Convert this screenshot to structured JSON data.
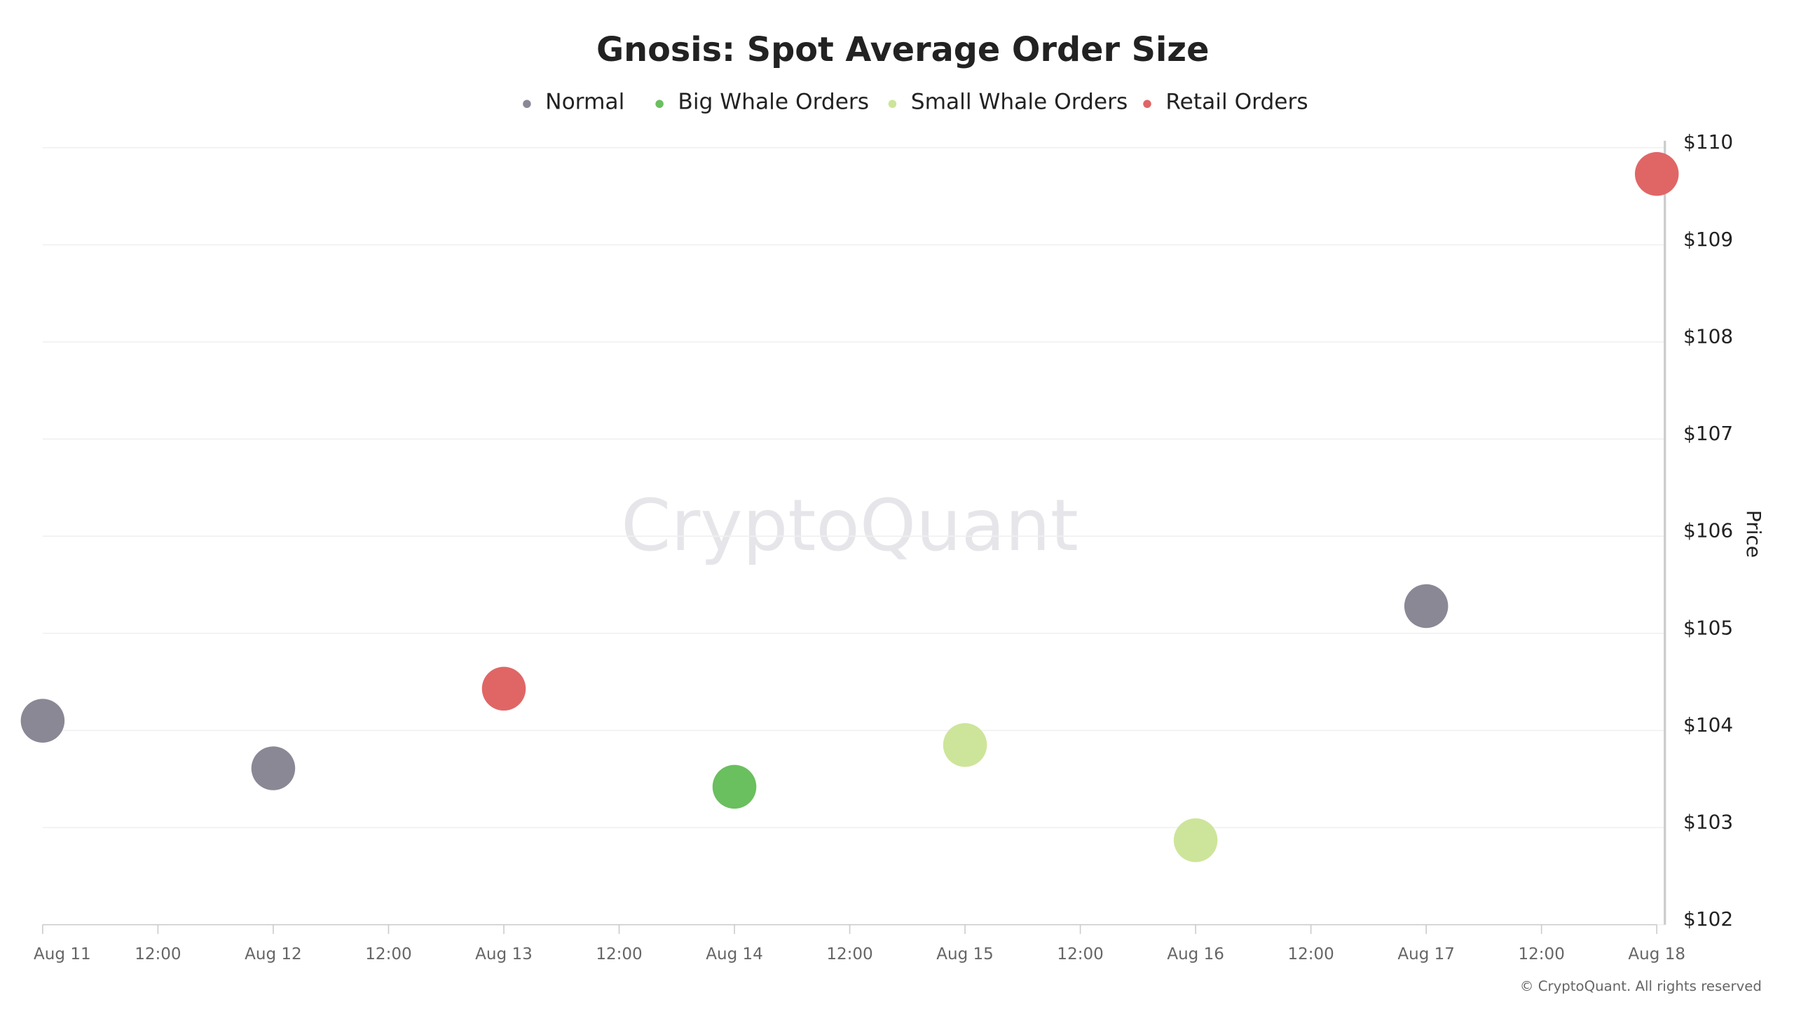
{
  "chart_data": {
    "type": "scatter",
    "title": "Gnosis: Spot Average Order Size",
    "x": [
      "Aug 11",
      "Aug 12",
      "Aug 13",
      "Aug 14",
      "Aug 15",
      "Aug 16",
      "Aug 17",
      "Aug 18"
    ],
    "xtick_labels": [
      "Aug 11",
      "12:00",
      "Aug 12",
      "12:00",
      "Aug 13",
      "12:00",
      "Aug 14",
      "12:00",
      "Aug 15",
      "12:00",
      "Aug 16",
      "12:00",
      "Aug 17",
      "12:00",
      "Aug 18"
    ],
    "series": [
      {
        "name": "Normal",
        "color": "#8a8895",
        "values": [
          104.1,
          103.61,
          null,
          null,
          null,
          null,
          105.28,
          null
        ]
      },
      {
        "name": "Big Whale Orders",
        "color": "#6abf5e",
        "values": [
          null,
          null,
          null,
          103.42,
          null,
          null,
          null,
          null
        ]
      },
      {
        "name": "Small Whale Orders",
        "color": "#cde59a",
        "values": [
          null,
          null,
          null,
          null,
          103.85,
          102.87,
          null,
          null
        ]
      },
      {
        "name": "Retail Orders",
        "color": "#e06666",
        "values": [
          null,
          null,
          104.43,
          null,
          null,
          null,
          null,
          109.73
        ]
      }
    ],
    "ylim": [
      102,
      110
    ],
    "yticks": [
      {
        "value": 102,
        "label": "$102"
      },
      {
        "value": 103,
        "label": "$103"
      },
      {
        "value": 104,
        "label": "$104"
      },
      {
        "value": 105,
        "label": "$105"
      },
      {
        "value": 106,
        "label": "$106"
      },
      {
        "value": 107,
        "label": "$107"
      },
      {
        "value": 108,
        "label": "$108"
      },
      {
        "value": 109,
        "label": "$109"
      },
      {
        "value": 110,
        "label": "$110"
      }
    ],
    "y_axis_label": "Price",
    "y_axis_side": "right",
    "grid": true,
    "legend_position": "top",
    "watermark": "CryptoQuant",
    "credit": "© CryptoQuant. All rights reserved"
  }
}
